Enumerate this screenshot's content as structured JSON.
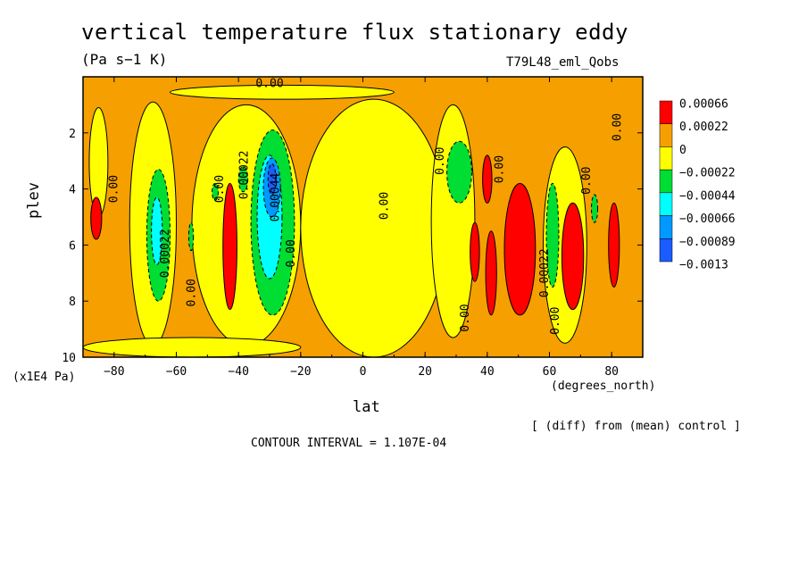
{
  "header": {
    "title": "vertical temperature flux stationary eddy",
    "units": "(Pa s−1 K)",
    "run_id": "T79L48_eml_Qobs"
  },
  "footer": {
    "y_units": "(x1E4 Pa)",
    "x_units": "(degrees_north)",
    "diff_note": "[ (diff) from (mean) control ]",
    "contour_interval": "CONTOUR INTERVAL = 1.107E-04"
  },
  "chart_data": {
    "type": "heatmap",
    "title": "vertical temperature flux stationary eddy",
    "xlabel": "lat",
    "ylabel": "plev",
    "xlim": [
      -90,
      90
    ],
    "ylim": [
      10,
      0
    ],
    "x_ticks": [
      -80,
      -60,
      -40,
      -20,
      0,
      20,
      40,
      60,
      80
    ],
    "x_tick_labels": [
      "−80",
      "−60",
      "−40",
      "−20",
      "0",
      "20",
      "40",
      "60",
      "80"
    ],
    "y_ticks": [
      2,
      4,
      6,
      8,
      10
    ],
    "y_tick_labels": [
      "2",
      "4",
      "6",
      "8",
      "10"
    ],
    "colorbar": {
      "labels": [
        "0.00066",
        "0.00022",
        "0",
        "−0.00022",
        "−0.00044",
        "−0.00066",
        "−0.00089",
        "−0.0013"
      ],
      "colors": [
        "#ff0000",
        "#f5a000",
        "#ffff00",
        "#00dd33",
        "#00ffff",
        "#0099ff",
        "#1a5cff",
        "#1a5cff"
      ]
    },
    "contour_interval": 0.0001107,
    "background_color": "#f5a000",
    "neutral_color": "#ffff00",
    "regions": [
      {
        "level": "0",
        "color": "#ffff00",
        "lat": [
          -75,
          -60
        ],
        "plev": [
          0.9,
          9.6
        ]
      },
      {
        "level": "0",
        "color": "#ffff00",
        "lat": [
          -55,
          -20
        ],
        "plev": [
          1.0,
          9.6
        ]
      },
      {
        "level": "0",
        "color": "#ffff00",
        "lat": [
          -20,
          27
        ],
        "plev": [
          0.8,
          10
        ]
      },
      {
        "level": "0",
        "color": "#ffff00",
        "lat": [
          22,
          36
        ],
        "plev": [
          1.0,
          9.3
        ]
      },
      {
        "level": "0",
        "color": "#ffff00",
        "lat": [
          -90,
          -20
        ],
        "plev": [
          9.3,
          10
        ]
      },
      {
        "level": "0",
        "color": "#ffff00",
        "lat": [
          58,
          72
        ],
        "plev": [
          2.5,
          9.5
        ]
      },
      {
        "level": "0",
        "color": "#ffff00",
        "lat": [
          -62,
          10
        ],
        "plev": [
          0.3,
          0.8
        ]
      },
      {
        "level": "0",
        "color": "#ffff00",
        "lat": [
          -88,
          -82
        ],
        "plev": [
          1.1,
          5.0
        ]
      },
      {
        "level": "-0.00022",
        "color": "#00dd33",
        "lat": [
          -69.5,
          -62
        ],
        "plev": [
          3.3,
          8.0
        ]
      },
      {
        "level": "-0.00066",
        "color": "#00ffff",
        "lat": [
          -68,
          -64.5
        ],
        "plev": [
          4.3,
          6.7
        ]
      },
      {
        "level": "-0.00022",
        "color": "#00dd33",
        "lat": [
          -36,
          -22
        ],
        "plev": [
          1.9,
          8.5
        ]
      },
      {
        "level": "-0.00066",
        "color": "#00ffff",
        "lat": [
          -34,
          -26
        ],
        "plev": [
          2.8,
          7.2
        ]
      },
      {
        "level": "-0.00089",
        "color": "#0099ff",
        "lat": [
          -32,
          -26.5
        ],
        "plev": [
          2.9,
          5.0
        ]
      },
      {
        "level": "-0.0013",
        "color": "#1a5cff",
        "lat": [
          -30.5,
          -28
        ],
        "plev": [
          3.1,
          4.2
        ]
      },
      {
        "level": "-0.00022",
        "color": "#00dd33",
        "lat": [
          -40,
          -37
        ],
        "plev": [
          3.2,
          4.1
        ]
      },
      {
        "level": "-0.00022",
        "color": "#00dd33",
        "lat": [
          -48.5,
          -46.5
        ],
        "plev": [
          3.8,
          4.4
        ]
      },
      {
        "level": "-0.00022",
        "color": "#00dd33",
        "lat": [
          -56,
          -54.5
        ],
        "plev": [
          5.2,
          6.2
        ]
      },
      {
        "level": "-0.00022",
        "color": "#00dd33",
        "lat": [
          27,
          35
        ],
        "plev": [
          2.3,
          4.5
        ]
      },
      {
        "level": "-0.00022",
        "color": "#00dd33",
        "lat": [
          59,
          63
        ],
        "plev": [
          3.8,
          7.5
        ]
      },
      {
        "level": "-0.00022",
        "color": "#00dd33",
        "lat": [
          73.5,
          75.5
        ],
        "plev": [
          4.2,
          5.2
        ]
      },
      {
        "level": "0.00066",
        "color": "#ff0000",
        "lat": [
          -87.5,
          -84
        ],
        "plev": [
          4.3,
          5.8
        ]
      },
      {
        "level": "0.00066",
        "color": "#ff0000",
        "lat": [
          -45,
          -40.5
        ],
        "plev": [
          3.8,
          8.3
        ]
      },
      {
        "level": "0.00066",
        "color": "#ff0000",
        "lat": [
          34.5,
          37.5
        ],
        "plev": [
          5.2,
          7.3
        ]
      },
      {
        "level": "0.00066",
        "color": "#ff0000",
        "lat": [
          38.5,
          41.5
        ],
        "plev": [
          2.8,
          4.5
        ]
      },
      {
        "level": "0.00066",
        "color": "#ff0000",
        "lat": [
          39.5,
          43
        ],
        "plev": [
          5.5,
          8.5
        ]
      },
      {
        "level": "0.00066",
        "color": "#ff0000",
        "lat": [
          45.5,
          55.5
        ],
        "plev": [
          3.8,
          8.5
        ]
      },
      {
        "level": "0.00066",
        "color": "#ff0000",
        "lat": [
          64,
          71
        ],
        "plev": [
          4.5,
          8.3
        ]
      },
      {
        "level": "0.00066",
        "color": "#ff0000",
        "lat": [
          79,
          82.5
        ],
        "plev": [
          4.5,
          7.5
        ]
      }
    ],
    "contour_labels": [
      {
        "text": "0.00",
        "lat": -30,
        "plev": 0.25,
        "angle": 0
      },
      {
        "text": "0.00",
        "lat": -80,
        "plev": 4.0,
        "angle": -90
      },
      {
        "text": "0.00022",
        "lat": -63.5,
        "plev": 6.3,
        "angle": -90
      },
      {
        "text": "0.00",
        "lat": -55,
        "plev": 7.7,
        "angle": -90
      },
      {
        "text": "0.00",
        "lat": -46,
        "plev": 4.0,
        "angle": -90
      },
      {
        "text": "0.00022",
        "lat": -38,
        "plev": 3.5,
        "angle": -90
      },
      {
        "text": "0.00044",
        "lat": -28,
        "plev": 4.3,
        "angle": -90
      },
      {
        "text": "0.00",
        "lat": -23,
        "plev": 6.3,
        "angle": -90
      },
      {
        "text": "0.00",
        "lat": 7,
        "plev": 4.6,
        "angle": -90
      },
      {
        "text": "0.00",
        "lat": 25,
        "plev": 3.0,
        "angle": -90
      },
      {
        "text": "0.00",
        "lat": 33,
        "plev": 8.6,
        "angle": -90
      },
      {
        "text": "0.00",
        "lat": 44,
        "plev": 3.3,
        "angle": -90
      },
      {
        "text": "0.00022",
        "lat": 58.5,
        "plev": 7.0,
        "angle": -90
      },
      {
        "text": "0.00",
        "lat": 62,
        "plev": 8.7,
        "angle": -90
      },
      {
        "text": "0.00",
        "lat": 72,
        "plev": 3.7,
        "angle": -90
      },
      {
        "text": "0.00",
        "lat": 82,
        "plev": 1.8,
        "angle": -90
      }
    ]
  }
}
